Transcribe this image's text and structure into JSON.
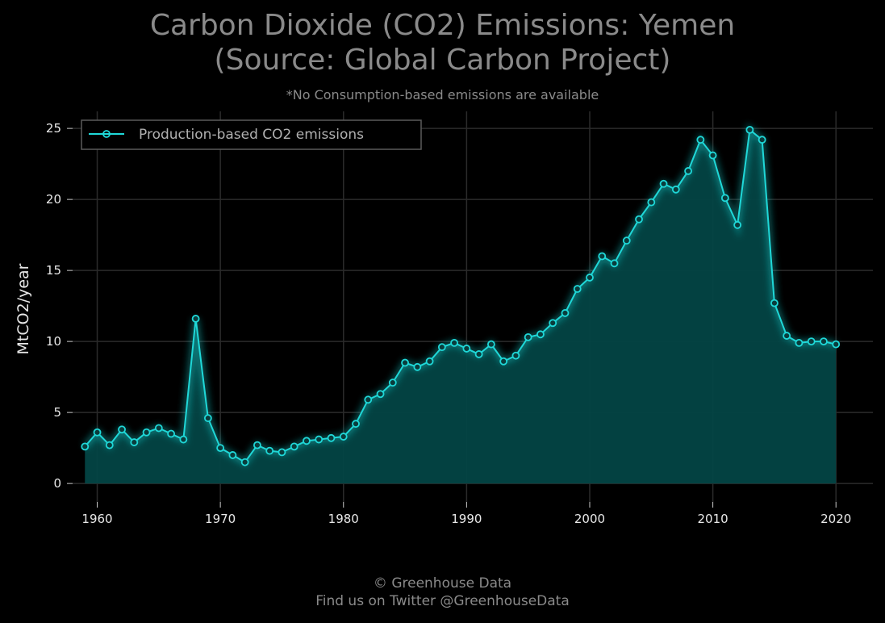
{
  "chart_data": {
    "type": "area",
    "title_line1": "Carbon Dioxide (CO2) Emissions: Yemen",
    "title_line2": "(Source: Global Carbon Project)",
    "subtitle": "*No Consumption-based emissions are available",
    "xlabel": "",
    "ylabel": "MtCO2/year",
    "xlim": [
      1958,
      2023
    ],
    "ylim": [
      -1.3,
      26.2
    ],
    "xticks": [
      1960,
      1970,
      1980,
      1990,
      2000,
      2010,
      2020
    ],
    "yticks": [
      0,
      5,
      10,
      15,
      20,
      25
    ],
    "grid": true,
    "legend_position": "top-left",
    "colors": {
      "line": "#1fd8d8",
      "fill": "#034444",
      "grid": "#2b2b2b",
      "background": "#000000"
    },
    "series": [
      {
        "name": "Production-based CO2 emissions",
        "x": [
          1959,
          1960,
          1961,
          1962,
          1963,
          1964,
          1965,
          1966,
          1967,
          1968,
          1969,
          1970,
          1971,
          1972,
          1973,
          1974,
          1975,
          1976,
          1977,
          1978,
          1979,
          1980,
          1981,
          1982,
          1983,
          1984,
          1985,
          1986,
          1987,
          1988,
          1989,
          1990,
          1991,
          1992,
          1993,
          1994,
          1995,
          1996,
          1997,
          1998,
          1999,
          2000,
          2001,
          2002,
          2003,
          2004,
          2005,
          2006,
          2007,
          2008,
          2009,
          2010,
          2011,
          2012,
          2013,
          2014,
          2015,
          2016,
          2017,
          2018,
          2019,
          2020
        ],
        "y": [
          2.6,
          3.6,
          2.7,
          3.8,
          2.9,
          3.6,
          3.9,
          3.5,
          3.1,
          11.6,
          4.6,
          2.5,
          2.0,
          1.5,
          2.7,
          2.3,
          2.2,
          2.6,
          3.0,
          3.1,
          3.2,
          3.3,
          4.2,
          5.9,
          6.3,
          7.1,
          8.5,
          8.2,
          8.6,
          9.6,
          9.9,
          9.5,
          9.1,
          9.8,
          8.6,
          9.0,
          10.3,
          10.5,
          11.3,
          12.0,
          13.7,
          14.5,
          16.0,
          15.5,
          17.1,
          18.6,
          19.8,
          21.1,
          20.7,
          22.0,
          24.2,
          23.1,
          20.1,
          18.2,
          24.9,
          24.2,
          12.7,
          10.4,
          9.9,
          10.0,
          10.0,
          9.8
        ]
      }
    ]
  },
  "footer": {
    "line1": "© Greenhouse Data",
    "line2": "Find us on Twitter @GreenhouseData"
  }
}
